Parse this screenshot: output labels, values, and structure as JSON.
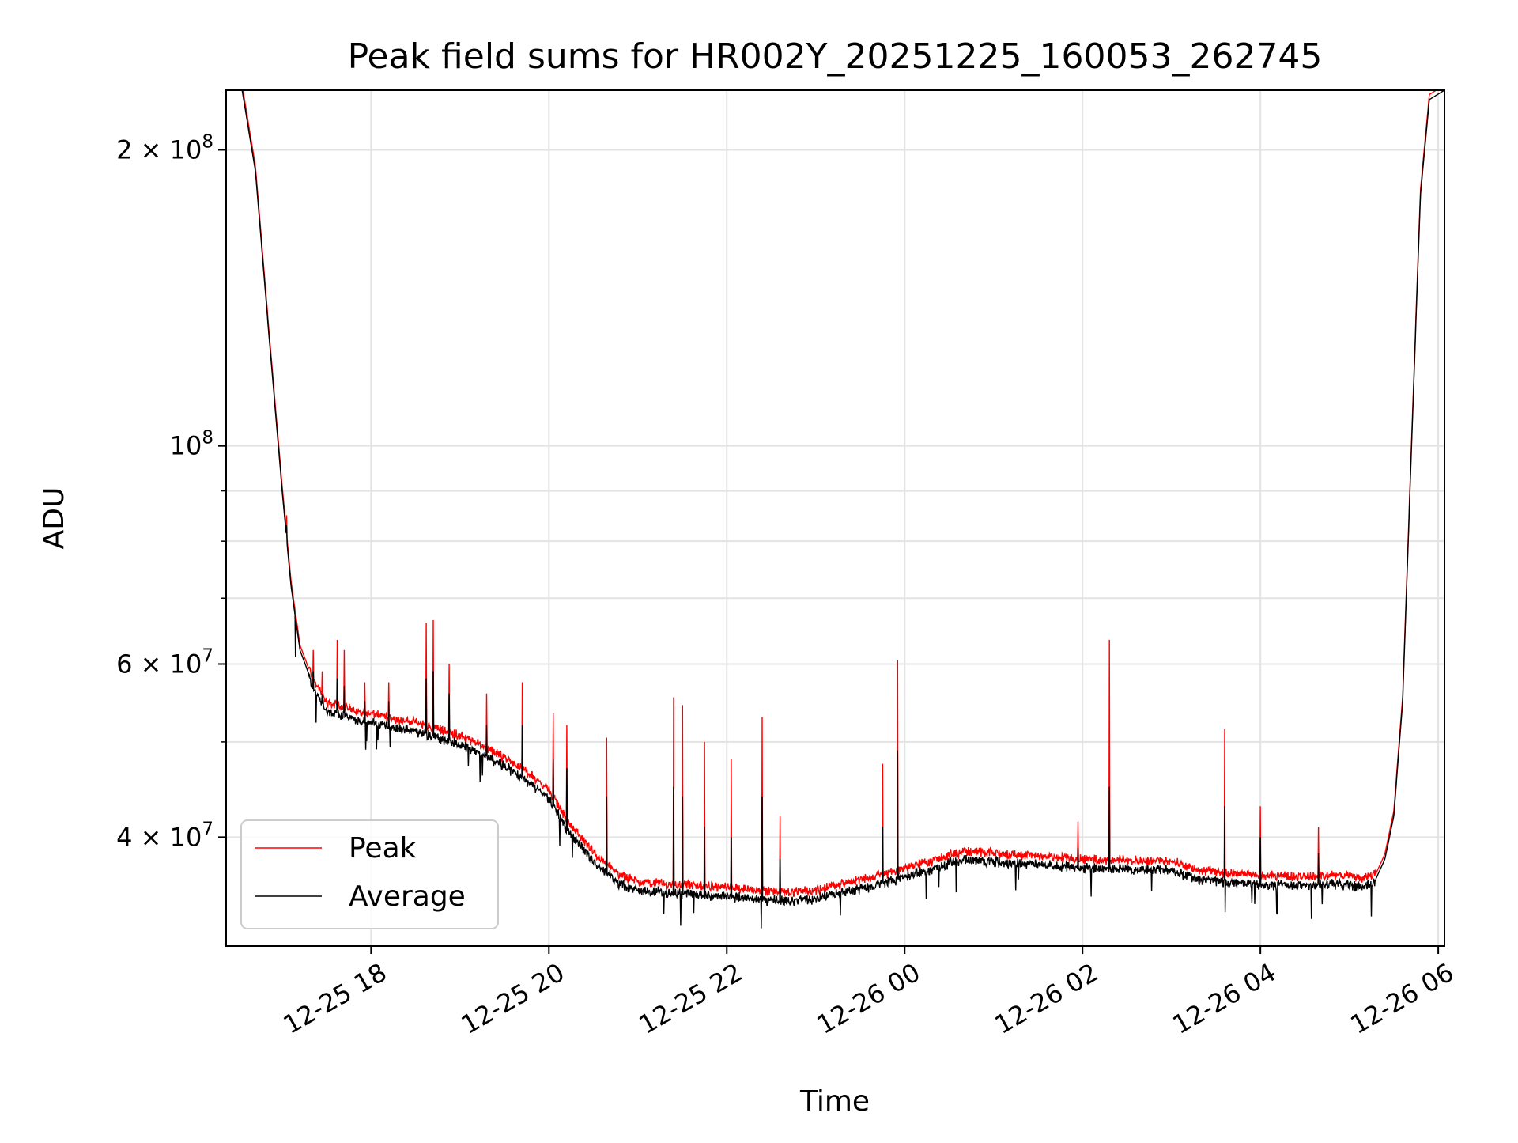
{
  "chart_data": {
    "type": "line",
    "title": "Peak field sums for HR002Y_20251225_160053_262745",
    "xlabel": "Time",
    "ylabel": "ADU",
    "yscale": "log",
    "grid": true,
    "legend_position": "lower-left",
    "x_unit": "hours since 12-25 16:00",
    "xlim": [
      0.37,
      14.07
    ],
    "ylim": [
      31000000,
      230000000
    ],
    "x_ticks": [
      {
        "value": 2,
        "label": "12-25 18"
      },
      {
        "value": 4,
        "label": "12-25 20"
      },
      {
        "value": 6,
        "label": "12-25 22"
      },
      {
        "value": 8,
        "label": "12-26 00"
      },
      {
        "value": 10,
        "label": "12-26 02"
      },
      {
        "value": 12,
        "label": "12-26 04"
      },
      {
        "value": 14,
        "label": "12-26 06"
      }
    ],
    "y_ticks": [
      {
        "value": 40000000,
        "label": "4 × 10⁷",
        "base": "4 × 10",
        "exp": "7"
      },
      {
        "value": 60000000,
        "label": "6 × 10⁷",
        "base": "6 × 10",
        "exp": "7"
      },
      {
        "value": 100000000,
        "label": "10⁸",
        "base": "10",
        "exp": "8"
      },
      {
        "value": 200000000,
        "label": "2 × 10⁸",
        "base": "2 × 10",
        "exp": "8"
      }
    ],
    "y_minor_ticks": [
      50000000,
      70000000,
      80000000,
      90000000
    ],
    "baseline": {
      "x": [
        0.37,
        0.55,
        0.7,
        0.85,
        1.0,
        1.1,
        1.2,
        1.35,
        1.5,
        2.0,
        2.5,
        3.0,
        3.5,
        3.8,
        4.0,
        4.2,
        4.5,
        4.8,
        5.0,
        5.2,
        5.5,
        6.0,
        6.5,
        6.8,
        7.0,
        7.3,
        7.6,
        7.9,
        8.1,
        8.3,
        8.5,
        8.7,
        9.0,
        9.5,
        10.0,
        10.5,
        11.0,
        11.3,
        11.5,
        12.0,
        12.5,
        13.0,
        13.15,
        13.3,
        13.4,
        13.5,
        13.6,
        13.7,
        13.8,
        13.9,
        14.07
      ],
      "y": [
        230000000,
        230000000,
        190000000,
        130000000,
        90000000,
        72000000,
        62000000,
        57000000,
        54000000,
        52500000,
        51500000,
        50000000,
        47500000,
        45500000,
        44000000,
        41000000,
        38000000,
        36000000,
        35500000,
        35400000,
        35200000,
        35000000,
        34700000,
        34600000,
        34800000,
        35300000,
        35800000,
        36400000,
        36900000,
        37200000,
        37800000,
        38100000,
        37900000,
        37700000,
        37400000,
        37300000,
        37200000,
        36400000,
        36300000,
        36000000,
        35900000,
        36000000,
        35700000,
        36300000,
        38000000,
        42000000,
        55000000,
        100000000,
        180000000,
        225000000,
        230000000
      ]
    },
    "spikes": [
      {
        "x": 1.05,
        "peak": 85000000,
        "average": 83000000
      },
      {
        "x": 1.15,
        "peak": 65000000,
        "average": 61000000
      },
      {
        "x": 1.35,
        "peak": 62000000,
        "average": 59000000
      },
      {
        "x": 1.45,
        "peak": 59000000,
        "average": 56000000
      },
      {
        "x": 1.62,
        "peak": 63500000,
        "average": 58000000
      },
      {
        "x": 1.7,
        "peak": 62000000,
        "average": 57000000
      },
      {
        "x": 1.93,
        "peak": 57500000,
        "average": 55000000
      },
      {
        "x": 2.2,
        "peak": 57500000,
        "average": 55000000
      },
      {
        "x": 2.62,
        "peak": 66000000,
        "average": 58000000
      },
      {
        "x": 2.7,
        "peak": 66500000,
        "average": 59000000
      },
      {
        "x": 2.88,
        "peak": 60000000,
        "average": 56000000
      },
      {
        "x": 3.3,
        "peak": 56000000,
        "average": 52000000
      },
      {
        "x": 3.7,
        "peak": 57500000,
        "average": 52000000
      },
      {
        "x": 4.05,
        "peak": 53500000,
        "average": 48000000
      },
      {
        "x": 4.2,
        "peak": 52000000,
        "average": 47000000
      },
      {
        "x": 4.65,
        "peak": 50500000,
        "average": 44000000
      },
      {
        "x": 5.4,
        "peak": 55500000,
        "average": 45000000
      },
      {
        "x": 5.5,
        "peak": 54500000,
        "average": 44000000
      },
      {
        "x": 5.75,
        "peak": 50000000,
        "average": 41000000
      },
      {
        "x": 6.05,
        "peak": 48000000,
        "average": 40000000
      },
      {
        "x": 6.4,
        "peak": 53000000,
        "average": 44000000
      },
      {
        "x": 6.6,
        "peak": 42000000,
        "average": 38000000
      },
      {
        "x": 7.75,
        "peak": 47500000,
        "average": 41000000
      },
      {
        "x": 7.92,
        "peak": 60500000,
        "average": 49000000
      },
      {
        "x": 9.95,
        "peak": 41500000,
        "average": 39000000
      },
      {
        "x": 10.3,
        "peak": 63500000,
        "average": 45000000
      },
      {
        "x": 11.6,
        "peak": 51500000,
        "average": 43000000
      },
      {
        "x": 12.0,
        "peak": 43000000,
        "average": 40000000
      },
      {
        "x": 12.65,
        "peak": 41000000,
        "average": 38500000
      }
    ],
    "series": [
      {
        "name": "Peak",
        "color": "#ff0000"
      },
      {
        "name": "Average",
        "color": "#000000"
      }
    ]
  }
}
